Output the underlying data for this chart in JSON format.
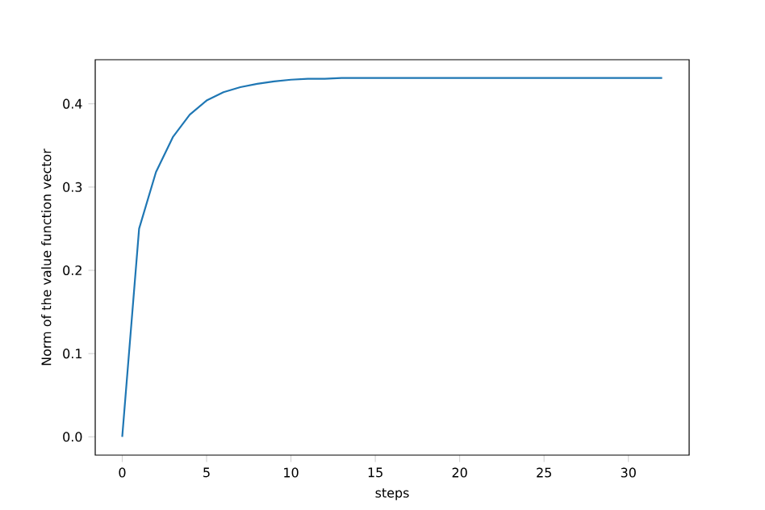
{
  "chart_data": {
    "type": "line",
    "xlabel": "steps",
    "ylabel": "Norm of the value function vector",
    "x": [
      0,
      1,
      2,
      3,
      4,
      5,
      6,
      7,
      8,
      9,
      10,
      11,
      12,
      13,
      14,
      15,
      16,
      17,
      18,
      19,
      20,
      21,
      22,
      23,
      24,
      25,
      26,
      27,
      28,
      29,
      30,
      31,
      32
    ],
    "series": [
      {
        "color": "#1f77b4",
        "values": [
          0,
          0.25,
          0.318,
          0.36,
          0.387,
          0.404,
          0.414,
          0.42,
          0.424,
          0.427,
          0.429,
          0.43,
          0.43,
          0.431,
          0.431,
          0.431,
          0.431,
          0.431,
          0.431,
          0.431,
          0.431,
          0.431,
          0.431,
          0.431,
          0.431,
          0.431,
          0.431,
          0.431,
          0.431,
          0.431,
          0.431,
          0.431,
          0.431
        ]
      }
    ],
    "xlim": [
      -1.6,
      33.6
    ],
    "ylim": [
      -0.022,
      0.453
    ],
    "xticks": [
      0,
      5,
      10,
      15,
      20,
      25,
      30
    ],
    "yticks": [
      {
        "value": 0,
        "label": "0.0"
      },
      {
        "value": 0.1,
        "label": "0.1"
      },
      {
        "value": 0.2,
        "label": "0.2"
      },
      {
        "value": 0.3,
        "label": "0.3"
      },
      {
        "value": 0.4,
        "label": "0.4"
      }
    ],
    "marker": "none",
    "line_style": "solid"
  }
}
